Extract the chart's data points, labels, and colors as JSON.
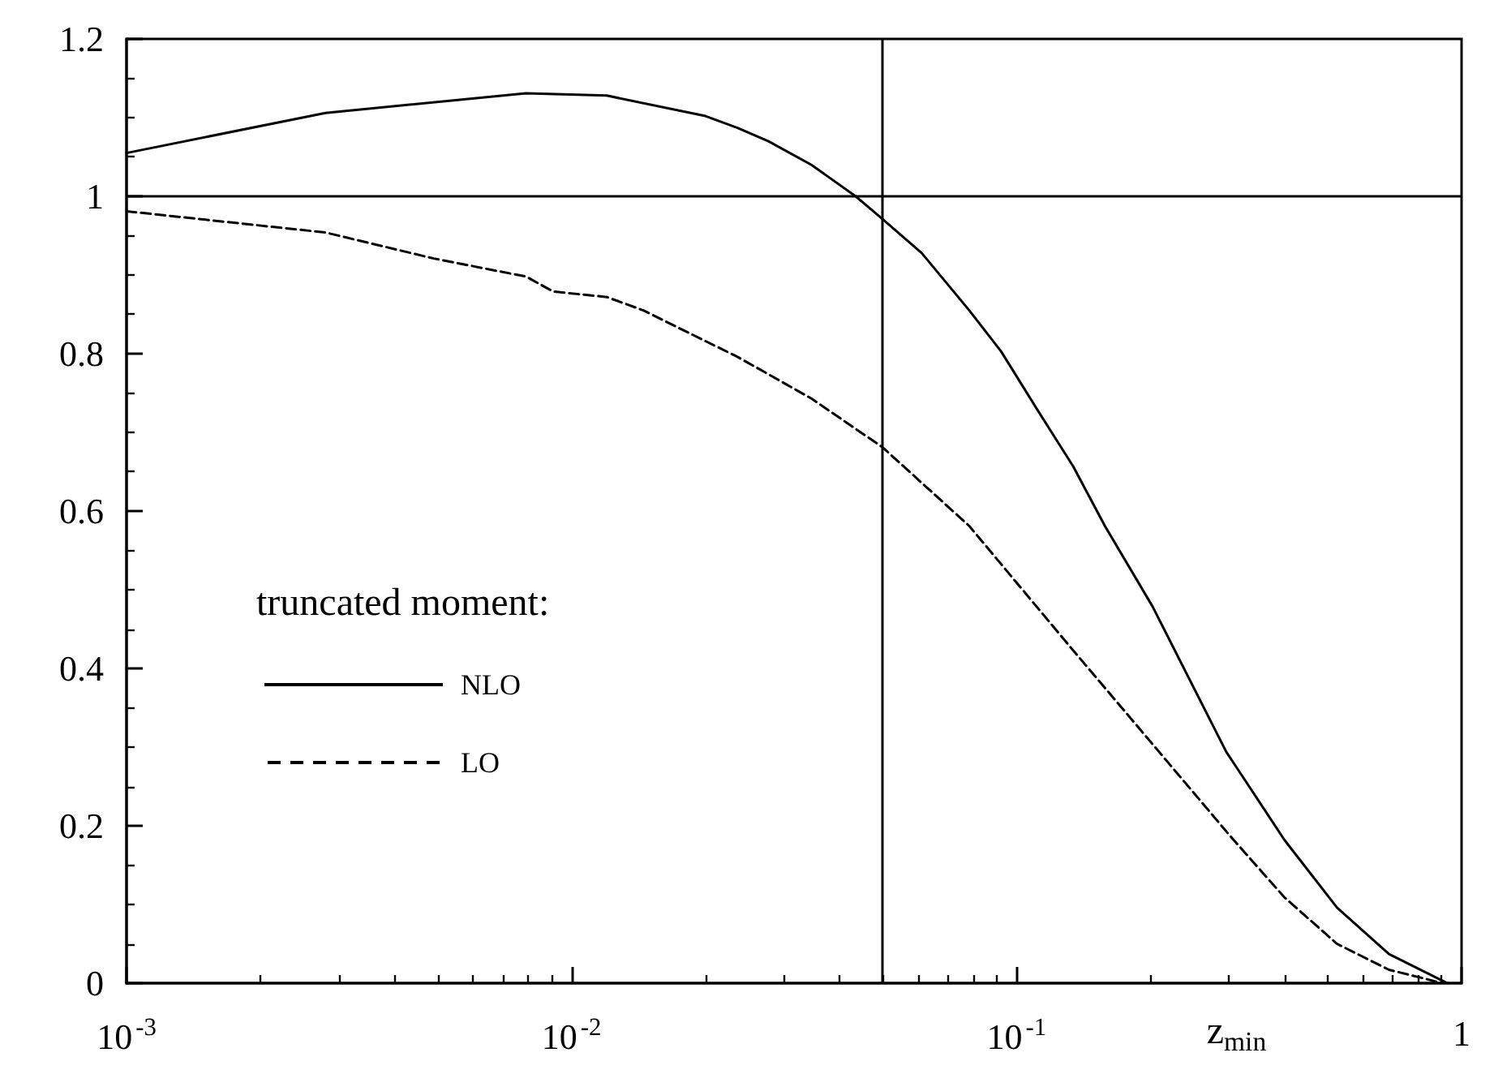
{
  "chart_data": {
    "type": "line",
    "xlabel": "z$_{min}$",
    "legend_title": "truncated moment:",
    "log": "x",
    "xlim": [
      0.001,
      1
    ],
    "xticks": [
      {
        "value": 0.001,
        "label": "10$^{-3}$"
      },
      {
        "value": 0.01,
        "label": "10$^{-2}$"
      },
      {
        "value": 0.1,
        "label": "10$^{-1}$"
      },
      1
    ],
    "ylim": [
      0,
      1.2
    ],
    "yticks": [
      0,
      0.2,
      0.4,
      0.6,
      0.8,
      1,
      1.2
    ],
    "grid": false,
    "legend": "bottom left",
    "marker": "none",
    "ref_lines": [
      {
        "axis": "y",
        "value": 1,
        "color": "#000000"
      },
      {
        "axis": "x",
        "value": 0.05,
        "color": "#000000"
      }
    ],
    "series": [
      {
        "name": "NLO",
        "color": "#000000",
        "line_style": "solid",
        "x": [
          0.001,
          0.0028,
          0.0079,
          0.012,
          0.02,
          0.0236,
          0.0277,
          0.0346,
          0.0435,
          0.05,
          0.0612,
          0.0783,
          0.0923,
          0.111,
          0.134,
          0.158,
          0.202,
          0.296,
          0.4,
          0.525,
          0.687,
          0.877,
          0.93
        ],
        "values": [
          1.055,
          1.106,
          1.131,
          1.128,
          1.102,
          1.087,
          1.07,
          1.04,
          1.0,
          0.971,
          0.928,
          0.855,
          0.803,
          0.73,
          0.657,
          0.581,
          0.479,
          0.294,
          0.182,
          0.096,
          0.037,
          0.007,
          0.0
        ]
      },
      {
        "name": "LO",
        "color": "#000000",
        "line_style": "dashed",
        "x": [
          0.001,
          0.0028,
          0.0049,
          0.0079,
          0.0091,
          0.012,
          0.0145,
          0.02,
          0.0236,
          0.0346,
          0.05,
          0.0783,
          0.134,
          0.202,
          0.3,
          0.4,
          0.525,
          0.687,
          0.85,
          0.9
        ],
        "values": [
          0.981,
          0.954,
          0.921,
          0.898,
          0.879,
          0.872,
          0.855,
          0.816,
          0.796,
          0.743,
          0.681,
          0.581,
          0.423,
          0.304,
          0.189,
          0.109,
          0.05,
          0.017,
          0.004,
          0.0
        ]
      }
    ]
  }
}
